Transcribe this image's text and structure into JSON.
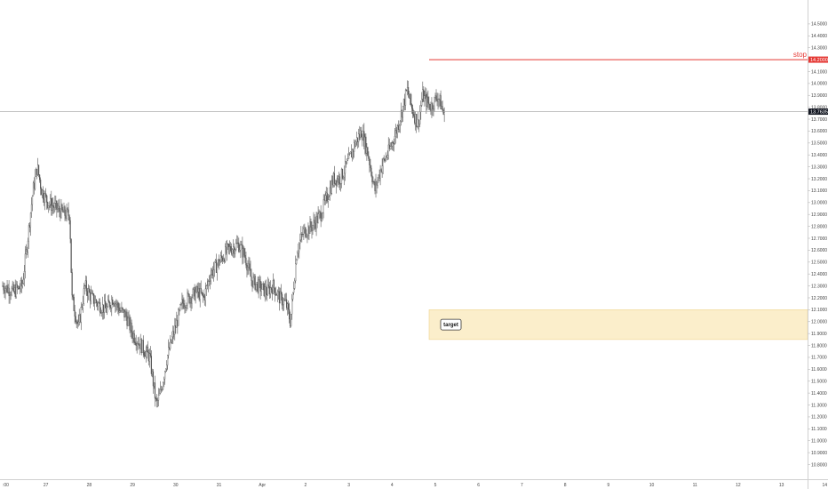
{
  "chart_data": {
    "type": "candlestick",
    "price_axis": {
      "min": 10.8,
      "max": 14.6,
      "tick_labels": [
        "10.8000",
        "10.9000",
        "11.0000",
        "11.1000",
        "11.2000",
        "11.3000",
        "11.4000",
        "11.5000",
        "11.6000",
        "11.7000",
        "11.8000",
        "11.9000",
        "12.0000",
        "12.1000",
        "12.2000",
        "12.3000",
        "12.4000",
        "12.5000",
        "12.6000",
        "12.7000",
        "12.8000",
        "12.9000",
        "13.0000",
        "13.1000",
        "13.2000",
        "13.3000",
        "13.4000",
        "13.5000",
        "13.6000",
        "13.7000",
        "13.8000",
        "13.9000",
        "14.0000",
        "14.1000",
        "14.3000",
        "14.4000",
        "14.5000"
      ],
      "tick_values": [
        10.8,
        10.9,
        11.0,
        11.1,
        11.2,
        11.3,
        11.4,
        11.5,
        11.6,
        11.7,
        11.8,
        11.9,
        12.0,
        12.1,
        12.2,
        12.3,
        12.4,
        12.5,
        12.6,
        12.7,
        12.8,
        12.9,
        13.0,
        13.1,
        13.2,
        13.3,
        13.4,
        13.5,
        13.6,
        13.7,
        13.8,
        13.9,
        14.0,
        14.1,
        14.3,
        14.4,
        14.5
      ]
    },
    "time_axis": {
      "tick_labels": [
        ":00",
        "27",
        "28",
        "29",
        "30",
        "31",
        "Apr",
        "2",
        "3",
        "4",
        "5",
        "6",
        "7",
        "8",
        "9",
        "10",
        "11",
        "12",
        "13",
        "14"
      ],
      "tick_days": [
        0,
        1,
        2,
        3,
        4,
        5,
        6,
        7,
        8,
        9,
        10,
        11,
        12,
        13,
        14,
        15,
        16,
        17,
        18,
        19
      ]
    },
    "price_path": [
      [
        0.0,
        12.3
      ],
      [
        0.25,
        12.25
      ],
      [
        0.45,
        12.3
      ],
      [
        0.55,
        12.6
      ],
      [
        0.7,
        13.1
      ],
      [
        0.8,
        13.3
      ],
      [
        0.9,
        13.1
      ],
      [
        1.05,
        13.0
      ],
      [
        1.25,
        12.95
      ],
      [
        1.45,
        12.9
      ],
      [
        1.55,
        12.9
      ],
      [
        1.6,
        12.2
      ],
      [
        1.75,
        11.95
      ],
      [
        1.9,
        12.3
      ],
      [
        2.05,
        12.2
      ],
      [
        2.2,
        12.15
      ],
      [
        2.4,
        12.1
      ],
      [
        2.55,
        12.2
      ],
      [
        2.7,
        12.1
      ],
      [
        2.85,
        12.05
      ],
      [
        3.0,
        11.9
      ],
      [
        3.2,
        11.8
      ],
      [
        3.4,
        11.7
      ],
      [
        3.55,
        11.3
      ],
      [
        3.65,
        11.4
      ],
      [
        3.8,
        11.7
      ],
      [
        3.95,
        11.9
      ],
      [
        4.15,
        12.15
      ],
      [
        4.3,
        12.2
      ],
      [
        4.5,
        12.25
      ],
      [
        4.65,
        12.2
      ],
      [
        4.8,
        12.4
      ],
      [
        5.0,
        12.5
      ],
      [
        5.2,
        12.6
      ],
      [
        5.45,
        12.65
      ],
      [
        5.6,
        12.55
      ],
      [
        5.75,
        12.35
      ],
      [
        5.9,
        12.3
      ],
      [
        6.1,
        12.25
      ],
      [
        6.25,
        12.3
      ],
      [
        6.4,
        12.2
      ],
      [
        6.55,
        12.15
      ],
      [
        6.65,
        12.0
      ],
      [
        6.8,
        12.6
      ],
      [
        6.95,
        12.75
      ],
      [
        7.15,
        12.8
      ],
      [
        7.35,
        12.9
      ],
      [
        7.5,
        13.05
      ],
      [
        7.65,
        13.2
      ],
      [
        7.8,
        13.2
      ],
      [
        8.0,
        13.35
      ],
      [
        8.15,
        13.5
      ],
      [
        8.3,
        13.6
      ],
      [
        8.45,
        13.4
      ],
      [
        8.6,
        13.1
      ],
      [
        8.75,
        13.3
      ],
      [
        8.95,
        13.45
      ],
      [
        9.1,
        13.6
      ],
      [
        9.25,
        13.8
      ],
      [
        9.35,
        13.95
      ],
      [
        9.45,
        13.8
      ],
      [
        9.6,
        13.65
      ],
      [
        9.7,
        13.9
      ],
      [
        9.8,
        13.85
      ],
      [
        9.9,
        13.8
      ],
      [
        10.05,
        13.9
      ],
      [
        10.15,
        13.8
      ],
      [
        10.22,
        13.7
      ]
    ],
    "current_price": 13.7635,
    "current_price_label": "13.7635",
    "stop_price": 14.2,
    "stop_price_label": "14.2000",
    "stop_label": "stop",
    "target_zone": {
      "low": 11.85,
      "high": 12.1,
      "label": "target"
    },
    "colors": {
      "background": "#ffffff",
      "candles": "#555555",
      "stop_line": "#e53935",
      "current_price_line": "#9e9e9e",
      "current_price_badge": "#131722",
      "target_fill": "#fbeecb",
      "target_border": "#f0d590"
    }
  }
}
